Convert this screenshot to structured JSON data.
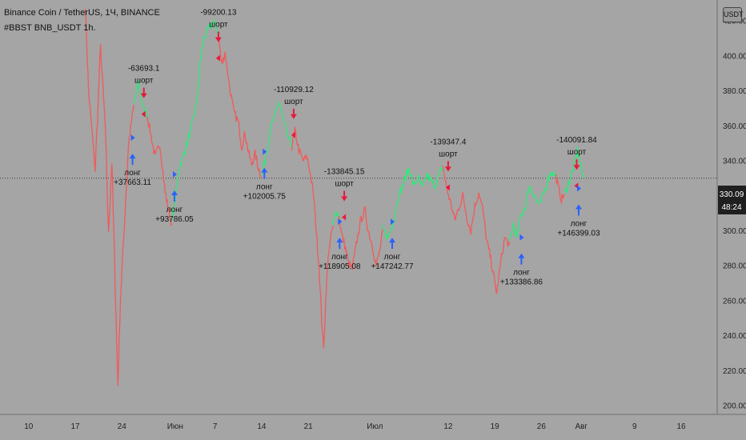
{
  "header": {
    "title": "Binance Coin / TetherUS, 1Ч, BINANCE",
    "indicator": "#BBST BNB_USDT 1h."
  },
  "currency_button": "USDT",
  "price_label": {
    "value": "330.09",
    "countdown": "48:24"
  },
  "colors": {
    "background": "#a5a5a5",
    "bull": "#2ee87a",
    "bear": "#f25a5a",
    "long_arrow": "#2962ff",
    "short_arrow": "#e8193c",
    "price_label_bg": "#1f1f1f"
  },
  "chart_data": {
    "type": "line",
    "title": "Binance Coin / TetherUS, 1Ч, BINANCE",
    "ylim": [
      195,
      432
    ],
    "y_ticks": [
      200,
      220,
      240,
      260,
      280,
      300,
      320,
      340,
      360,
      380,
      400,
      420
    ],
    "y_tick_labels": [
      "200.00",
      "220.00",
      "240.00",
      "260.00",
      "280.00",
      "300.00",
      "320.00",
      "340.00",
      "360.00",
      "380.00",
      "400.00",
      "420.00"
    ],
    "x_ticks": [
      {
        "label": "10",
        "t": 10
      },
      {
        "label": "17",
        "t": 17
      },
      {
        "label": "24",
        "t": 24
      },
      {
        "label": "Июн",
        "t": 32
      },
      {
        "label": "7",
        "t": 38
      },
      {
        "label": "14",
        "t": 45
      },
      {
        "label": "21",
        "t": 52
      },
      {
        "label": "Июл",
        "t": 62
      },
      {
        "label": "12",
        "t": 73
      },
      {
        "label": "19",
        "t": 80
      },
      {
        "label": "26",
        "t": 87
      },
      {
        "label": "Авг",
        "t": 93
      },
      {
        "label": "9",
        "t": 101
      },
      {
        "label": "16",
        "t": 108
      }
    ],
    "xlim": [
      5.7,
      113.4
    ],
    "current_price": 330.09,
    "series": [
      {
        "segments": [
          {
            "trend": "bear",
            "points": [
              [
                18.5,
                430
              ],
              [
                19,
                380
              ],
              [
                20,
                335
              ],
              [
                20.8,
                405
              ],
              [
                21.5,
                360
              ],
              [
                22,
                298
              ],
              [
                22.5,
                340
              ],
              [
                23,
                268
              ],
              [
                23.4,
                212
              ],
              [
                23.8,
                262
              ],
              [
                24.5,
                312
              ],
              [
                25,
                350
              ],
              [
                25.8,
                372
              ]
            ]
          },
          {
            "trend": "bull",
            "points": [
              [
                25.8,
                372
              ],
              [
                26.5,
                385
              ],
              [
                27.2,
                370
              ],
              [
                27.8,
                366
              ]
            ]
          },
          {
            "trend": "bear",
            "points": [
              [
                27.8,
                366
              ],
              [
                28.5,
                352
              ],
              [
                29,
                342
              ],
              [
                29.7,
                350
              ],
              [
                30.5,
                322
              ],
              [
                31,
                312
              ],
              [
                31.5,
                304
              ]
            ]
          },
          {
            "trend": "bull",
            "points": [
              [
                31.5,
                304
              ],
              [
                32,
                318
              ],
              [
                32.6,
                336
              ],
              [
                33.5,
                346
              ],
              [
                34.5,
                360
              ],
              [
                35.2,
                372
              ],
              [
                35.8,
                398
              ],
              [
                36.3,
                410
              ],
              [
                37,
                415
              ],
              [
                37.8,
                420
              ],
              [
                38.5,
                412
              ]
            ]
          },
          {
            "trend": "bear",
            "points": [
              [
                38.5,
                412
              ],
              [
                39,
                395
              ],
              [
                39.5,
                402
              ],
              [
                40.2,
                382
              ],
              [
                40.8,
                368
              ],
              [
                41.5,
                362
              ],
              [
                42,
                348
              ],
              [
                42.5,
                356
              ],
              [
                43,
                345
              ],
              [
                43.5,
                338
              ],
              [
                44,
                344
              ],
              [
                44.5,
                336
              ],
              [
                45,
                331
              ]
            ]
          },
          {
            "trend": "bull",
            "points": [
              [
                45,
                331
              ],
              [
                45.6,
                342
              ],
              [
                46.3,
                358
              ],
              [
                47,
                366
              ],
              [
                47.6,
                374
              ],
              [
                48.2,
                364
              ],
              [
                48.8,
                355
              ],
              [
                49.5,
                348
              ]
            ]
          },
          {
            "trend": "bear",
            "points": [
              [
                49.5,
                348
              ],
              [
                50,
                357
              ],
              [
                50.6,
                346
              ],
              [
                51.2,
                340
              ],
              [
                51.8,
                342
              ],
              [
                52.2,
                335
              ],
              [
                52.8,
                320
              ],
              [
                53.2,
                300
              ],
              [
                53.6,
                280
              ],
              [
                54,
                250
              ],
              [
                54.3,
                232
              ],
              [
                54.7,
                268
              ],
              [
                55.1,
                290
              ],
              [
                55.7,
                303
              ]
            ]
          },
          {
            "trend": "bull",
            "points": [
              [
                55.7,
                303
              ],
              [
                56.2,
                312
              ],
              [
                56.6,
                308
              ]
            ]
          },
          {
            "trend": "bear",
            "points": [
              [
                56.6,
                308
              ],
              [
                57,
                298
              ],
              [
                57.6,
                290
              ],
              [
                58,
                282
              ],
              [
                58.6,
                278
              ],
              [
                59.2,
                292
              ],
              [
                59.8,
                305
              ],
              [
                60.5,
                312
              ],
              [
                61,
                300
              ],
              [
                61.6,
                292
              ],
              [
                62.2,
                280
              ],
              [
                62.8,
                290
              ],
              [
                63.2,
                301
              ]
            ]
          },
          {
            "trend": "bull",
            "points": [
              [
                63.2,
                301
              ],
              [
                64,
                296
              ],
              [
                64.8,
                306
              ],
              [
                65.4,
                318
              ],
              [
                66.2,
                326
              ],
              [
                67.1,
                336
              ],
              [
                67.8,
                326
              ],
              [
                68.5,
                330
              ],
              [
                69.2,
                324
              ],
              [
                69.8,
                332
              ],
              [
                70.5,
                328
              ],
              [
                71,
                326
              ],
              [
                71.6,
                331
              ],
              [
                72.2,
                337
              ]
            ]
          },
          {
            "trend": "bear",
            "points": [
              [
                72.2,
                337
              ],
              [
                72.8,
                324
              ],
              [
                73.5,
                314
              ],
              [
                74,
                306
              ],
              [
                74.5,
                312
              ],
              [
                75.2,
                320
              ],
              [
                75.8,
                308
              ],
              [
                76.4,
                300
              ],
              [
                77,
                314
              ],
              [
                77.6,
                322
              ],
              [
                78.2,
                312
              ],
              [
                78.8,
                294
              ],
              [
                79.3,
                286
              ],
              [
                79.8,
                275
              ],
              [
                80.3,
                264
              ],
              [
                80.9,
                282
              ],
              [
                81.5,
                296
              ],
              [
                82.2,
                292
              ]
            ]
          },
          {
            "trend": "bull",
            "points": [
              [
                82.2,
                292
              ],
              [
                82.8,
                304
              ],
              [
                83.3,
                296
              ],
              [
                83.9,
                308
              ],
              [
                84.6,
                314
              ],
              [
                85.2,
                326
              ],
              [
                86,
                320
              ],
              [
                86.7,
                314
              ],
              [
                87.4,
                322
              ],
              [
                88,
                330
              ],
              [
                88.6,
                334
              ],
              [
                89.2,
                331
              ]
            ]
          },
          {
            "trend": "bear",
            "points": [
              [
                89.2,
                331
              ],
              [
                89.6,
                324
              ],
              [
                90,
                318
              ],
              [
                90.5,
                321
              ]
            ]
          },
          {
            "trend": "bull",
            "points": [
              [
                90.5,
                321
              ],
              [
                91,
                326
              ],
              [
                91.5,
                332
              ],
              [
                92,
                338
              ],
              [
                92.4,
                346
              ],
              [
                92.9,
                338
              ],
              [
                93.3,
                330
              ]
            ]
          }
        ]
      }
    ],
    "signals": [
      {
        "type": "long",
        "t": 25.6,
        "y": 345,
        "label": "лонг",
        "value": "+37663.11",
        "value_first": false
      },
      {
        "type": "short",
        "t": 27.3,
        "y": 375,
        "label": "шорт",
        "value": "-63693.1",
        "value_first": true
      },
      {
        "type": "long",
        "t": 31.9,
        "y": 324,
        "label": "лонг",
        "value": "+93786.05",
        "value_first": false
      },
      {
        "type": "short",
        "t": 38.5,
        "y": 407,
        "label": "шорт",
        "value": "-99200.13",
        "value_first": true
      },
      {
        "type": "long",
        "t": 45.4,
        "y": 337,
        "label": "лонг",
        "value": "+102005.75",
        "value_first": false
      },
      {
        "type": "short",
        "t": 49.8,
        "y": 363,
        "label": "шорт",
        "value": "-110929.12",
        "value_first": true
      },
      {
        "type": "long",
        "t": 56.7,
        "y": 297,
        "label": "лонг",
        "value": "+118905.08",
        "value_first": false
      },
      {
        "type": "short",
        "t": 57.4,
        "y": 316,
        "label": "шорт",
        "value": "-133845.15",
        "value_first": true
      },
      {
        "type": "long",
        "t": 64.6,
        "y": 297,
        "label": "лонг",
        "value": "+147242.77",
        "value_first": false
      },
      {
        "type": "short",
        "t": 73.0,
        "y": 333,
        "label": "шорт",
        "value": "-139347.4",
        "value_first": true
      },
      {
        "type": "long",
        "t": 84.0,
        "y": 288,
        "label": "лонг",
        "value": "+133386.86",
        "value_first": false
      },
      {
        "type": "short",
        "t": 92.3,
        "y": 334,
        "label": "шорт",
        "value": "-140091.84",
        "value_first": true
      },
      {
        "type": "long",
        "t": 92.6,
        "y": 316,
        "label": "лонг",
        "value": "+146399.03",
        "value_first": false
      }
    ]
  }
}
